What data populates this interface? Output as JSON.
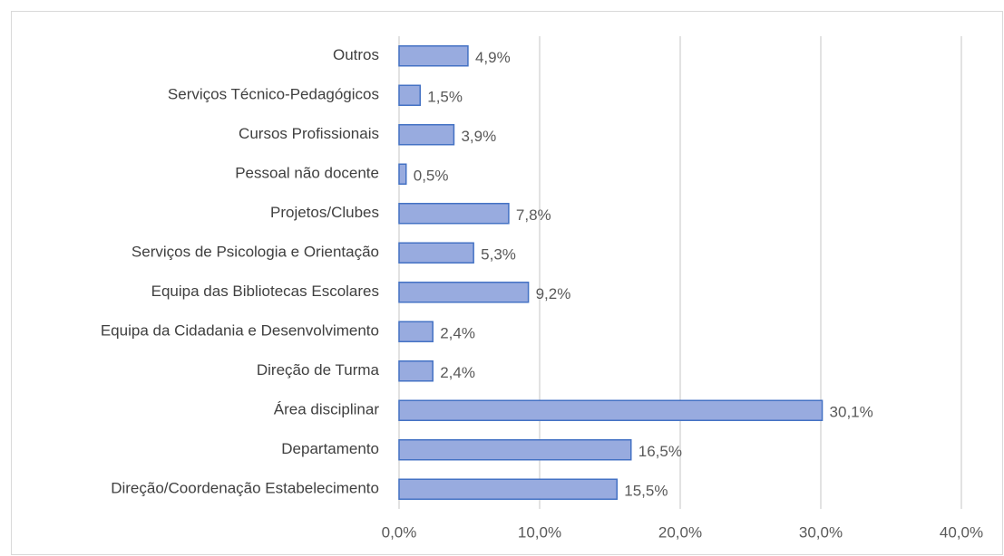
{
  "chart_data": {
    "type": "bar",
    "orientation": "horizontal",
    "categories": [
      "Outros",
      "Serviços Técnico-Pedagógicos",
      "Cursos Profissionais",
      "Pessoal não docente",
      "Projetos/Clubes",
      "Serviços de Psicologia e Orientação",
      "Equipa das Bibliotecas Escolares",
      "Equipa da Cidadania e Desenvolvimento",
      "Direção de Turma",
      "Área disciplinar",
      "Departamento",
      "Direção/Coordenação Estabelecimento"
    ],
    "values": [
      4.9,
      1.5,
      3.9,
      0.5,
      7.8,
      5.3,
      9.2,
      2.4,
      2.4,
      30.1,
      16.5,
      15.5
    ],
    "value_labels": [
      "4,9%",
      "1,5%",
      "3,9%",
      "0,5%",
      "7,8%",
      "5,3%",
      "9,2%",
      "2,4%",
      "2,4%",
      "30,1%",
      "16,5%",
      "15,5%"
    ],
    "color": "#98abdf",
    "edge_color": "#4472c4",
    "xlim": [
      0,
      40
    ],
    "xticks": [
      {
        "value": 0,
        "label": "0,0%"
      },
      {
        "value": 10,
        "label": "10,0%"
      },
      {
        "value": 20,
        "label": "20,0%"
      },
      {
        "value": 30,
        "label": "30,0%"
      },
      {
        "value": 40,
        "label": "40,0%"
      }
    ],
    "grid": true
  }
}
